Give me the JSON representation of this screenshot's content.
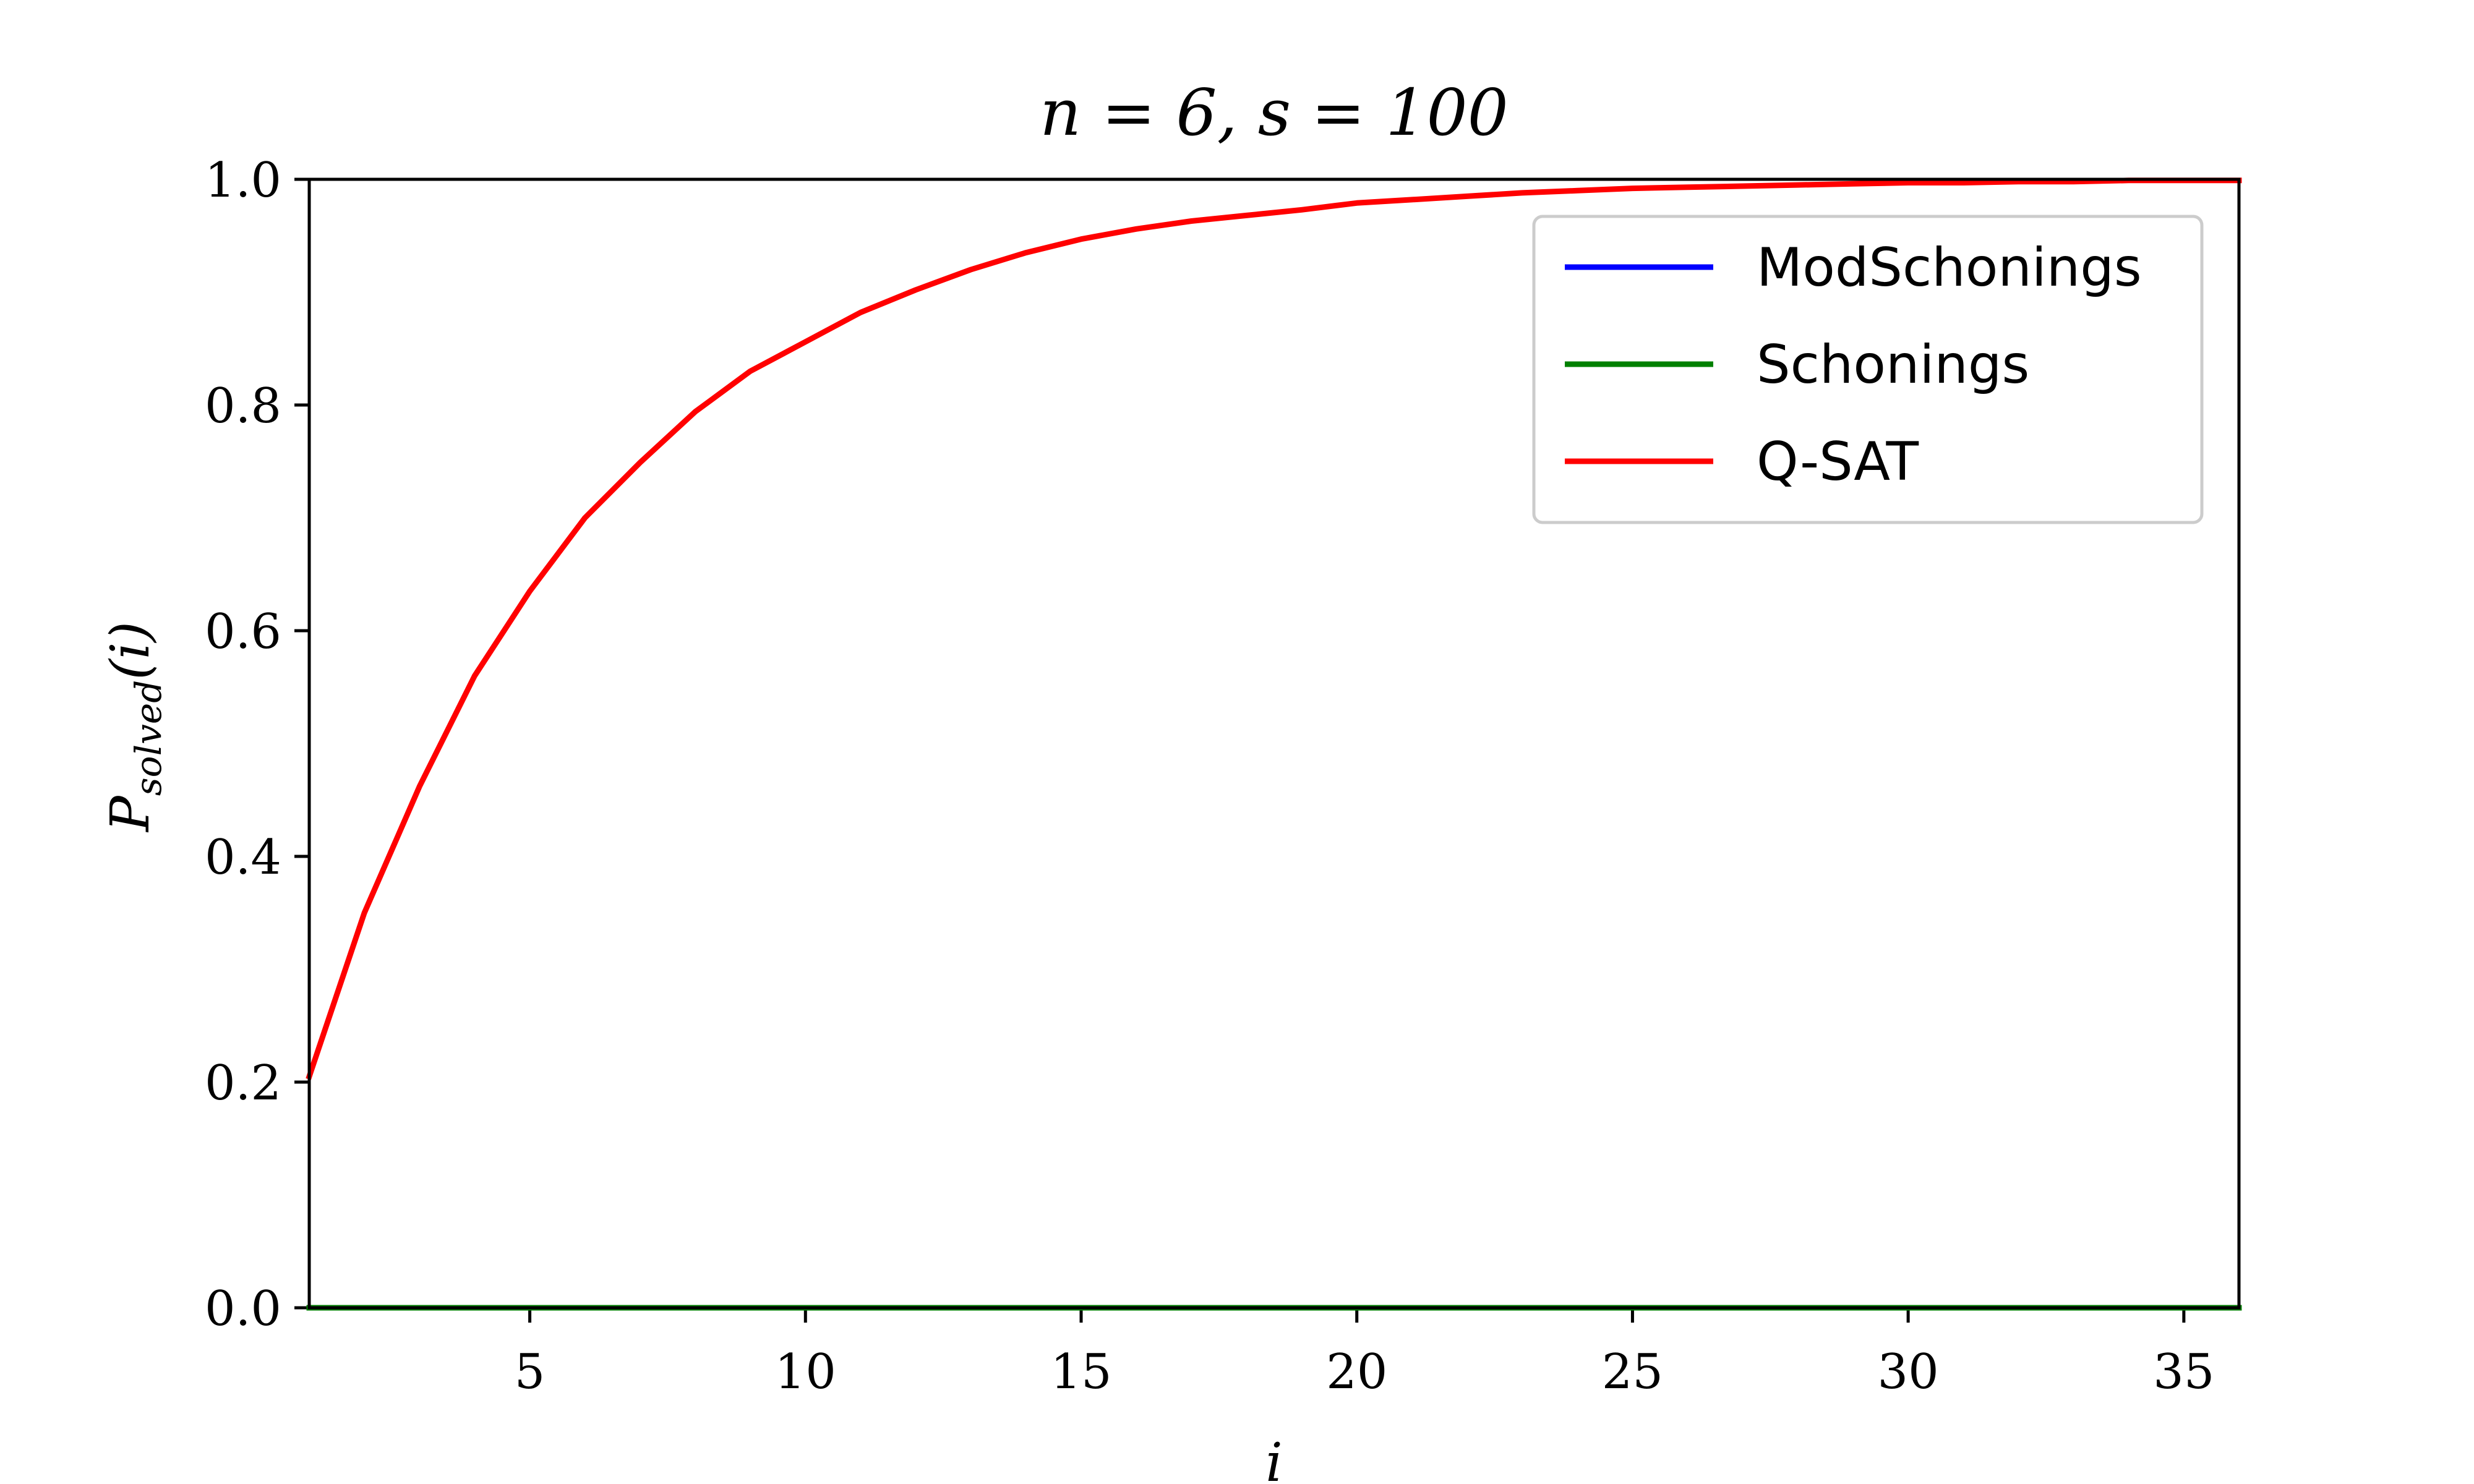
{
  "chart_data": {
    "type": "line",
    "title": "n = 6, s = 100",
    "xlabel": "i",
    "ylabel_main": "P",
    "ylabel_sub": "solved",
    "ylabel_suffix": "(i)",
    "xlim": [
      1,
      36
    ],
    "ylim": [
      0.0,
      1.0
    ],
    "x_ticks": [
      5,
      10,
      15,
      20,
      25,
      30,
      35
    ],
    "x_tick_labels": [
      "5",
      "10",
      "15",
      "20",
      "25",
      "30",
      "35"
    ],
    "y_ticks": [
      0.0,
      0.2,
      0.4,
      0.6,
      0.8,
      1.0
    ],
    "y_tick_labels": [
      "0.0",
      "0.2",
      "0.4",
      "0.6",
      "0.8",
      "1.0"
    ],
    "grid": false,
    "legend_position": "top-right",
    "x": [
      1,
      2,
      3,
      4,
      5,
      6,
      7,
      8,
      9,
      10,
      11,
      12,
      13,
      14,
      15,
      16,
      17,
      18,
      19,
      20,
      21,
      22,
      23,
      24,
      25,
      26,
      27,
      28,
      29,
      30,
      31,
      32,
      33,
      34,
      35,
      36
    ],
    "series": [
      {
        "name": "ModSchonings",
        "color": "#0000ff",
        "values": [
          0,
          0,
          0,
          0,
          0,
          0,
          0,
          0,
          0,
          0,
          0,
          0,
          0,
          0,
          0,
          0,
          0,
          0,
          0,
          0,
          0,
          0,
          0,
          0,
          0,
          0,
          0,
          0,
          0,
          0,
          0,
          0,
          0,
          0,
          0,
          0
        ]
      },
      {
        "name": "Schonings",
        "color": "#008000",
        "values": [
          0,
          0,
          0,
          0,
          0,
          0,
          0,
          0,
          0,
          0,
          0,
          0,
          0,
          0,
          0,
          0,
          0,
          0,
          0,
          0,
          0,
          0,
          0,
          0,
          0,
          0,
          0,
          0,
          0,
          0,
          0,
          0,
          0,
          0,
          0,
          0
        ]
      },
      {
        "name": "Q-SAT",
        "color": "#ff0000",
        "values": [
          0.205,
          0.35,
          0.462,
          0.56,
          0.635,
          0.7,
          0.749,
          0.794,
          0.83,
          0.856,
          0.882,
          0.902,
          0.92,
          0.935,
          0.947,
          0.956,
          0.963,
          0.968,
          0.973,
          0.979,
          0.982,
          0.985,
          0.988,
          0.99,
          0.992,
          0.993,
          0.994,
          0.995,
          0.996,
          0.997,
          0.997,
          0.998,
          0.998,
          0.999,
          0.999,
          0.999
        ]
      }
    ]
  }
}
